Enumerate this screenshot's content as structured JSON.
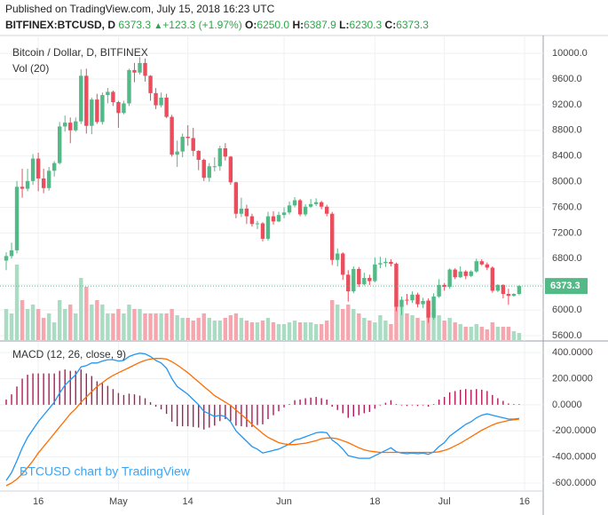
{
  "header": {
    "published": "Published on TradingView.com, July 15, 2018 16:23 UTC",
    "symbol": "BITFINEX:BTCUSD, D",
    "last": "6373.3",
    "change": "+123.3 (+1.97%)",
    "ohlc": [
      {
        "key": "O:",
        "value": "6250.0"
      },
      {
        "key": "H:",
        "value": "6387.9"
      },
      {
        "key": "L:",
        "value": "6230.3"
      },
      {
        "key": "C:",
        "value": "6373.3"
      }
    ]
  },
  "watermark": "BTCUSD chart by TradingView",
  "chart_data": [
    {
      "type": "candlestick",
      "title": "Bitcoin / Dollar, D, BITFINEX",
      "volume_label": "Vol (20)",
      "up_color": "#53b987",
      "down_color": "#eb4d5c",
      "volume_up_color": "#a9dcc3",
      "volume_down_color": "#f5a6ae",
      "grid": true,
      "categories": [
        null,
        null,
        null,
        null,
        null,
        null,
        "16",
        null,
        null,
        null,
        null,
        null,
        null,
        null,
        null,
        null,
        null,
        null,
        null,
        null,
        null,
        "May",
        null,
        null,
        null,
        null,
        null,
        null,
        null,
        null,
        null,
        null,
        null,
        null,
        "14",
        null,
        null,
        null,
        null,
        null,
        null,
        null,
        null,
        null,
        null,
        null,
        null,
        null,
        null,
        null,
        null,
        null,
        "Jun",
        null,
        null,
        null,
        null,
        null,
        null,
        null,
        null,
        null,
        null,
        null,
        null,
        null,
        null,
        null,
        null,
        "18",
        null,
        null,
        null,
        null,
        null,
        null,
        null,
        null,
        null,
        null,
        null,
        null,
        "Jul",
        null,
        null,
        null,
        null,
        null,
        null,
        null,
        null,
        null,
        null,
        null,
        null,
        null,
        null,
        "16"
      ],
      "open": [
        6770,
        6840,
        6930,
        7920,
        7890,
        8010,
        8360,
        8050,
        7900,
        8170,
        8290,
        8860,
        8920,
        8800,
        8940,
        9650,
        8870,
        9280,
        8930,
        9350,
        9400,
        9240,
        9070,
        9220,
        9740,
        9700,
        9850,
        9650,
        9380,
        9190,
        9310,
        9010,
        8420,
        8470,
        8700,
        8680,
        8480,
        8340,
        8060,
        8240,
        8240,
        8520,
        8390,
        7990,
        7500,
        7580,
        7460,
        7340,
        7350,
        7110,
        7460,
        7380,
        7480,
        7520,
        7630,
        7710,
        7490,
        7610,
        7650,
        7680,
        7610,
        7500,
        6780,
        6880,
        6550,
        6290,
        6640,
        6400,
        6500,
        6450,
        6710,
        6730,
        6750,
        6720,
        6050,
        6160,
        6150,
        6240,
        6090,
        6140,
        5880,
        6210,
        6390,
        6360,
        6630,
        6510,
        6600,
        6530,
        6600,
        6760,
        6710,
        6660,
        6300,
        6390,
        6250,
        6220,
        6250,
        null
      ],
      "high": [
        6900,
        7050,
        8010,
        8200,
        8200,
        8430,
        8450,
        8200,
        8230,
        8320,
        8930,
        9030,
        9000,
        9000,
        9750,
        9760,
        9310,
        9370,
        9390,
        9460,
        9420,
        9260,
        9260,
        9760,
        9850,
        9940,
        9920,
        9660,
        9460,
        9390,
        9370,
        9040,
        8640,
        8750,
        8880,
        8840,
        8490,
        8360,
        8290,
        8380,
        8560,
        8600,
        8400,
        8000,
        7750,
        7640,
        7500,
        7390,
        7370,
        7530,
        7540,
        7530,
        7600,
        7690,
        7760,
        7730,
        7650,
        7730,
        7740,
        7700,
        7640,
        7530,
        6960,
        6900,
        6620,
        6680,
        6670,
        6580,
        6550,
        6820,
        6830,
        6810,
        6790,
        6740,
        6210,
        6250,
        6290,
        6270,
        6190,
        6180,
        6260,
        6480,
        6420,
        6650,
        6650,
        6680,
        6620,
        6620,
        6800,
        6790,
        6740,
        6680,
        6400,
        6400,
        6330,
        6260,
        6387.9,
        null
      ],
      "low": [
        6620,
        6800,
        6880,
        7750,
        7850,
        7950,
        7850,
        7820,
        7860,
        8080,
        8270,
        8780,
        8600,
        8780,
        8900,
        8750,
        8740,
        8900,
        8890,
        9220,
        9180,
        8840,
        9050,
        9180,
        9550,
        9670,
        9560,
        9260,
        9130,
        9160,
        8990,
        8390,
        8230,
        8380,
        8560,
        8400,
        8180,
        8010,
        8000,
        8160,
        8170,
        8330,
        7950,
        7430,
        7450,
        7340,
        7300,
        7260,
        7070,
        7080,
        7330,
        7370,
        7430,
        7490,
        7600,
        7460,
        7460,
        7590,
        7620,
        7570,
        7460,
        6700,
        6680,
        6470,
        6130,
        6260,
        6360,
        6380,
        6390,
        6430,
        6650,
        6670,
        6680,
        5980,
        5920,
        6080,
        6110,
        6040,
        6030,
        5800,
        5850,
        6190,
        6300,
        6330,
        6480,
        6500,
        6480,
        6510,
        6580,
        6690,
        6620,
        6270,
        6280,
        6180,
        6080,
        6210,
        6230.3,
        null
      ],
      "close": [
        6840,
        6930,
        7920,
        7890,
        8010,
        8360,
        8050,
        7900,
        8170,
        8290,
        8860,
        8920,
        8800,
        8940,
        9650,
        8870,
        9280,
        8930,
        9350,
        9400,
        9240,
        9070,
        9220,
        9740,
        9700,
        9850,
        9650,
        9380,
        9190,
        9310,
        9010,
        8420,
        8470,
        8700,
        8680,
        8480,
        8340,
        8060,
        8240,
        8240,
        8520,
        8390,
        7990,
        7500,
        7580,
        7460,
        7340,
        7350,
        7110,
        7460,
        7380,
        7480,
        7520,
        7630,
        7710,
        7490,
        7610,
        7650,
        7680,
        7610,
        7500,
        6780,
        6880,
        6550,
        6290,
        6640,
        6400,
        6500,
        6450,
        6710,
        6730,
        6750,
        6720,
        6050,
        6160,
        6150,
        6240,
        6090,
        6140,
        5880,
        6210,
        6390,
        6360,
        6630,
        6510,
        6600,
        6530,
        6600,
        6760,
        6710,
        6660,
        6300,
        6390,
        6250,
        6220,
        6250,
        6373.3,
        null
      ],
      "volume": [
        35,
        30,
        85,
        45,
        35,
        40,
        35,
        25,
        30,
        20,
        45,
        35,
        40,
        30,
        70,
        60,
        40,
        45,
        40,
        30,
        30,
        35,
        30,
        40,
        35,
        35,
        30,
        30,
        30,
        30,
        30,
        35,
        28,
        25,
        25,
        22,
        25,
        30,
        25,
        22,
        22,
        25,
        28,
        30,
        25,
        22,
        20,
        20,
        22,
        25,
        20,
        18,
        18,
        20,
        22,
        20,
        20,
        20,
        18,
        18,
        22,
        45,
        40,
        35,
        40,
        35,
        30,
        25,
        22,
        20,
        28,
        22,
        18,
        45,
        38,
        30,
        28,
        25,
        22,
        45,
        35,
        28,
        22,
        25,
        20,
        18,
        15,
        15,
        18,
        15,
        12,
        20,
        15,
        15,
        15,
        10,
        8,
        null
      ],
      "ylim": [
        5517,
        10278
      ],
      "yticks": [
        {
          "value": 5600,
          "label": "5600.0"
        },
        {
          "value": 6000,
          "label": "6000.0"
        },
        {
          "value": 6400,
          "label": "6400.0"
        },
        {
          "value": 6800,
          "label": "6800.0"
        },
        {
          "value": 7200,
          "label": "7200.0"
        },
        {
          "value": 7600,
          "label": "7600.0"
        },
        {
          "value": 8000,
          "label": "8000.0"
        },
        {
          "value": 8400,
          "label": "8400.0"
        },
        {
          "value": 8800,
          "label": "8800.0"
        },
        {
          "value": 9200,
          "label": "9200.0"
        },
        {
          "value": 9600,
          "label": "9600.0"
        },
        {
          "value": 10000,
          "label": "10000.0"
        }
      ]
    },
    {
      "type": "macd",
      "title": "MACD (12, 26, close, 9)",
      "macd_color": "#2196f3",
      "signal_color": "#ff6d00",
      "histogram_color": "#b0185a",
      "grid": true,
      "macd": [
        -580,
        -520,
        -430,
        -330,
        -250,
        -190,
        -130,
        -80,
        -30,
        20,
        90,
        150,
        190,
        230,
        290,
        300,
        320,
        320,
        335,
        345,
        345,
        335,
        340,
        370,
        385,
        395,
        390,
        370,
        340,
        320,
        280,
        200,
        140,
        110,
        80,
        40,
        0,
        -50,
        -70,
        -90,
        -80,
        -90,
        -130,
        -200,
        -240,
        -280,
        -320,
        -340,
        -370,
        -360,
        -350,
        -340,
        -320,
        -300,
        -270,
        -260,
        -245,
        -230,
        -215,
        -210,
        -215,
        -270,
        -300,
        -340,
        -390,
        -400,
        -410,
        -410,
        -410,
        -390,
        -370,
        -350,
        -330,
        -360,
        -370,
        -375,
        -370,
        -375,
        -370,
        -380,
        -360,
        -320,
        -290,
        -240,
        -210,
        -180,
        -150,
        -130,
        -100,
        -80,
        -70,
        -80,
        -90,
        -100,
        -110,
        -110,
        -105,
        null
      ],
      "signal": [
        -620,
        -600,
        -570,
        -530,
        -480,
        -430,
        -370,
        -320,
        -270,
        -220,
        -170,
        -120,
        -70,
        -30,
        20,
        60,
        100,
        140,
        170,
        200,
        225,
        245,
        265,
        285,
        305,
        325,
        340,
        350,
        355,
        355,
        350,
        330,
        305,
        275,
        245,
        210,
        175,
        140,
        105,
        70,
        45,
        20,
        -5,
        -40,
        -75,
        -110,
        -150,
        -185,
        -220,
        -250,
        -270,
        -290,
        -300,
        -305,
        -305,
        -300,
        -295,
        -285,
        -275,
        -260,
        -255,
        -255,
        -260,
        -275,
        -290,
        -310,
        -330,
        -345,
        -355,
        -360,
        -365,
        -365,
        -365,
        -365,
        -365,
        -365,
        -365,
        -365,
        -365,
        -365,
        -365,
        -360,
        -350,
        -335,
        -315,
        -295,
        -270,
        -245,
        -220,
        -195,
        -175,
        -155,
        -140,
        -130,
        -120,
        -115,
        -110,
        null
      ],
      "histogram": [
        40,
        80,
        140,
        200,
        230,
        240,
        240,
        240,
        240,
        240,
        260,
        270,
        260,
        260,
        270,
        240,
        220,
        180,
        165,
        145,
        120,
        90,
        75,
        85,
        80,
        70,
        50,
        20,
        -15,
        -35,
        -70,
        -130,
        -165,
        -165,
        -165,
        -170,
        -175,
        -190,
        -175,
        -160,
        -125,
        -110,
        -125,
        -160,
        -165,
        -170,
        -170,
        -155,
        -150,
        -110,
        -80,
        -50,
        -20,
        5,
        35,
        40,
        50,
        55,
        60,
        50,
        40,
        -15,
        -40,
        -65,
        -100,
        -90,
        -80,
        -65,
        -55,
        -30,
        -5,
        15,
        35,
        5,
        -5,
        -10,
        -5,
        -10,
        -5,
        -15,
        5,
        40,
        60,
        95,
        105,
        115,
        120,
        115,
        120,
        115,
        105,
        75,
        50,
        30,
        10,
        5,
        5,
        null
      ],
      "ylim": [
        -661,
        482
      ],
      "yticks": [
        {
          "value": -600,
          "label": "-600.0000"
        },
        {
          "value": -400,
          "label": "-400.0000"
        },
        {
          "value": -200,
          "label": "-200.0000"
        },
        {
          "value": 0,
          "label": "0.0000"
        },
        {
          "value": 200,
          "label": "200.0000"
        },
        {
          "value": 400,
          "label": "400.0000"
        }
      ]
    }
  ]
}
